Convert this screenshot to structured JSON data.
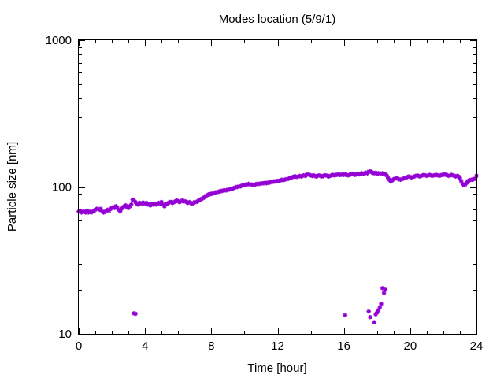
{
  "chart_data": {
    "type": "scatter",
    "title": "Modes location (5/9/1)",
    "xlabel": "Time [hour]",
    "ylabel": "Particle size [nm]",
    "xlim": [
      0,
      24
    ],
    "ylim": [
      10,
      1000
    ],
    "yscale": "log",
    "x_ticks": [
      0,
      4,
      8,
      12,
      16,
      20,
      24
    ],
    "x_tick_labels": [
      "0",
      "4",
      "8",
      "12",
      "16",
      "20",
      "24"
    ],
    "y_ticks": [
      10,
      100,
      1000
    ],
    "y_tick_labels": [
      "10",
      "100",
      "1000"
    ],
    "grid": false,
    "legend": "none",
    "marker_color": "#9400d3",
    "series": [
      {
        "points": [
          [
            0.0,
            68
          ],
          [
            0.08,
            69
          ],
          [
            0.17,
            67
          ],
          [
            0.25,
            68
          ],
          [
            0.33,
            68
          ],
          [
            0.42,
            67
          ],
          [
            0.5,
            69
          ],
          [
            0.58,
            67
          ],
          [
            0.67,
            68
          ],
          [
            0.75,
            67
          ],
          [
            0.83,
            68
          ],
          [
            0.92,
            69
          ],
          [
            1.0,
            70
          ],
          [
            1.08,
            71
          ],
          [
            1.17,
            71
          ],
          [
            1.25,
            70
          ],
          [
            1.33,
            71
          ],
          [
            1.42,
            68
          ],
          [
            1.5,
            67
          ],
          [
            1.58,
            68
          ],
          [
            1.67,
            69
          ],
          [
            1.75,
            70
          ],
          [
            1.83,
            69
          ],
          [
            1.92,
            71
          ],
          [
            2.0,
            72
          ],
          [
            2.08,
            73
          ],
          [
            2.17,
            72
          ],
          [
            2.25,
            74
          ],
          [
            2.33,
            72
          ],
          [
            2.42,
            70
          ],
          [
            2.5,
            68
          ],
          [
            2.58,
            71
          ],
          [
            2.67,
            73
          ],
          [
            2.75,
            74
          ],
          [
            2.83,
            75
          ],
          [
            2.92,
            73
          ],
          [
            3.0,
            72
          ],
          [
            3.08,
            74
          ],
          [
            3.17,
            76
          ],
          [
            3.25,
            82
          ],
          [
            3.33,
            81
          ],
          [
            3.42,
            79
          ],
          [
            3.5,
            77
          ],
          [
            3.58,
            76
          ],
          [
            3.67,
            78
          ],
          [
            3.75,
            77
          ],
          [
            3.83,
            78
          ],
          [
            3.92,
            78
          ],
          [
            4.0,
            77
          ],
          [
            4.08,
            78
          ],
          [
            4.17,
            76
          ],
          [
            4.25,
            76
          ],
          [
            4.33,
            75
          ],
          [
            4.42,
            77
          ],
          [
            4.5,
            76
          ],
          [
            4.58,
            77
          ],
          [
            4.67,
            76
          ],
          [
            4.75,
            77
          ],
          [
            4.83,
            78
          ],
          [
            4.92,
            77
          ],
          [
            5.0,
            79
          ],
          [
            5.08,
            76
          ],
          [
            5.17,
            74
          ],
          [
            5.25,
            76
          ],
          [
            5.33,
            77
          ],
          [
            5.42,
            78
          ],
          [
            5.5,
            79
          ],
          [
            5.58,
            79
          ],
          [
            5.67,
            78
          ],
          [
            5.75,
            79
          ],
          [
            5.83,
            80
          ],
          [
            5.92,
            81
          ],
          [
            6.0,
            80
          ],
          [
            6.08,
            79
          ],
          [
            6.17,
            80
          ],
          [
            6.25,
            81
          ],
          [
            6.33,
            80
          ],
          [
            6.42,
            80
          ],
          [
            6.5,
            79
          ],
          [
            6.58,
            78
          ],
          [
            6.67,
            79
          ],
          [
            6.75,
            78
          ],
          [
            6.83,
            77
          ],
          [
            6.92,
            78
          ],
          [
            7.0,
            79
          ],
          [
            7.08,
            79
          ],
          [
            7.17,
            80
          ],
          [
            7.25,
            81
          ],
          [
            7.33,
            82
          ],
          [
            7.42,
            83
          ],
          [
            7.5,
            84
          ],
          [
            7.58,
            85
          ],
          [
            7.67,
            87
          ],
          [
            7.75,
            88
          ],
          [
            7.83,
            89
          ],
          [
            7.92,
            89
          ],
          [
            8.0,
            90
          ],
          [
            8.08,
            90
          ],
          [
            8.17,
            91
          ],
          [
            8.25,
            92
          ],
          [
            8.33,
            92
          ],
          [
            8.42,
            93
          ],
          [
            8.5,
            93
          ],
          [
            8.58,
            94
          ],
          [
            8.67,
            94
          ],
          [
            8.75,
            95
          ],
          [
            8.83,
            95
          ],
          [
            8.92,
            95
          ],
          [
            9.0,
            96
          ],
          [
            9.08,
            96
          ],
          [
            9.17,
            97
          ],
          [
            9.25,
            97
          ],
          [
            9.33,
            98
          ],
          [
            9.42,
            99
          ],
          [
            9.5,
            100
          ],
          [
            9.58,
            100
          ],
          [
            9.67,
            101
          ],
          [
            9.75,
            101
          ],
          [
            9.83,
            102
          ],
          [
            9.92,
            103
          ],
          [
            10.0,
            103
          ],
          [
            10.08,
            104
          ],
          [
            10.17,
            104
          ],
          [
            10.25,
            105
          ],
          [
            10.33,
            104
          ],
          [
            10.42,
            104
          ],
          [
            10.5,
            103
          ],
          [
            10.58,
            104
          ],
          [
            10.67,
            104
          ],
          [
            10.75,
            105
          ],
          [
            10.83,
            105
          ],
          [
            10.92,
            105
          ],
          [
            11.0,
            106
          ],
          [
            11.08,
            106
          ],
          [
            11.17,
            106
          ],
          [
            11.25,
            107
          ],
          [
            11.33,
            106
          ],
          [
            11.42,
            107
          ],
          [
            11.5,
            107
          ],
          [
            11.58,
            108
          ],
          [
            11.67,
            108
          ],
          [
            11.75,
            109
          ],
          [
            11.83,
            109
          ],
          [
            11.92,
            110
          ],
          [
            12.0,
            110
          ],
          [
            12.08,
            110
          ],
          [
            12.17,
            111
          ],
          [
            12.25,
            112
          ],
          [
            12.33,
            111
          ],
          [
            12.42,
            112
          ],
          [
            12.5,
            113
          ],
          [
            12.58,
            113
          ],
          [
            12.67,
            114
          ],
          [
            12.75,
            115
          ],
          [
            12.83,
            116
          ],
          [
            12.92,
            117
          ],
          [
            13.0,
            118
          ],
          [
            13.08,
            118
          ],
          [
            13.17,
            117
          ],
          [
            13.25,
            118
          ],
          [
            13.33,
            119
          ],
          [
            13.42,
            118
          ],
          [
            13.5,
            119
          ],
          [
            13.58,
            120
          ],
          [
            13.67,
            119
          ],
          [
            13.75,
            121
          ],
          [
            13.83,
            122
          ],
          [
            13.92,
            121
          ],
          [
            14.0,
            120
          ],
          [
            14.08,
            119
          ],
          [
            14.17,
            120
          ],
          [
            14.25,
            119
          ],
          [
            14.33,
            118
          ],
          [
            14.42,
            119
          ],
          [
            14.5,
            120
          ],
          [
            14.58,
            119
          ],
          [
            14.67,
            118
          ],
          [
            14.75,
            119
          ],
          [
            14.83,
            120
          ],
          [
            14.92,
            120
          ],
          [
            15.0,
            119
          ],
          [
            15.08,
            118
          ],
          [
            15.17,
            119
          ],
          [
            15.25,
            120
          ],
          [
            15.33,
            121
          ],
          [
            15.42,
            120
          ],
          [
            15.5,
            121
          ],
          [
            15.58,
            121
          ],
          [
            15.67,
            122
          ],
          [
            15.75,
            121
          ],
          [
            15.83,
            121
          ],
          [
            15.92,
            122
          ],
          [
            16.0,
            121
          ],
          [
            16.08,
            122
          ],
          [
            16.17,
            121
          ],
          [
            16.25,
            120
          ],
          [
            16.33,
            121
          ],
          [
            16.42,
            122
          ],
          [
            16.5,
            123
          ],
          [
            16.58,
            122
          ],
          [
            16.67,
            121
          ],
          [
            16.75,
            122
          ],
          [
            16.83,
            123
          ],
          [
            16.92,
            122
          ],
          [
            17.0,
            123
          ],
          [
            17.08,
            124
          ],
          [
            17.17,
            123
          ],
          [
            17.25,
            124
          ],
          [
            17.33,
            125
          ],
          [
            17.42,
            124
          ],
          [
            17.5,
            127
          ],
          [
            17.58,
            128
          ],
          [
            17.67,
            126
          ],
          [
            17.75,
            125
          ],
          [
            17.83,
            124
          ],
          [
            17.92,
            125
          ],
          [
            18.0,
            123
          ],
          [
            18.08,
            124
          ],
          [
            18.17,
            124
          ],
          [
            18.25,
            123
          ],
          [
            18.33,
            124
          ],
          [
            18.42,
            123
          ],
          [
            18.5,
            122
          ],
          [
            18.58,
            120
          ],
          [
            18.67,
            115
          ],
          [
            18.75,
            112
          ],
          [
            18.83,
            109
          ],
          [
            18.92,
            111
          ],
          [
            19.0,
            113
          ],
          [
            19.08,
            114
          ],
          [
            19.17,
            115
          ],
          [
            19.25,
            114
          ],
          [
            19.33,
            113
          ],
          [
            19.42,
            112
          ],
          [
            19.5,
            113
          ],
          [
            19.58,
            114
          ],
          [
            19.67,
            115
          ],
          [
            19.75,
            116
          ],
          [
            19.83,
            117
          ],
          [
            19.92,
            118
          ],
          [
            20.0,
            117
          ],
          [
            20.08,
            116
          ],
          [
            20.17,
            117
          ],
          [
            20.25,
            118
          ],
          [
            20.33,
            119
          ],
          [
            20.42,
            120
          ],
          [
            20.5,
            119
          ],
          [
            20.58,
            118
          ],
          [
            20.67,
            119
          ],
          [
            20.75,
            120
          ],
          [
            20.83,
            121
          ],
          [
            20.92,
            120
          ],
          [
            21.0,
            119
          ],
          [
            21.08,
            120
          ],
          [
            21.17,
            121
          ],
          [
            21.25,
            120
          ],
          [
            21.33,
            119
          ],
          [
            21.42,
            120
          ],
          [
            21.5,
            120
          ],
          [
            21.58,
            121
          ],
          [
            21.67,
            120
          ],
          [
            21.75,
            119
          ],
          [
            21.83,
            120
          ],
          [
            21.92,
            121
          ],
          [
            22.0,
            121
          ],
          [
            22.08,
            122
          ],
          [
            22.17,
            121
          ],
          [
            22.25,
            120
          ],
          [
            22.33,
            119
          ],
          [
            22.42,
            120
          ],
          [
            22.5,
            121
          ],
          [
            22.58,
            120
          ],
          [
            22.67,
            119
          ],
          [
            22.75,
            118
          ],
          [
            22.83,
            119
          ],
          [
            22.92,
            118
          ],
          [
            23.0,
            115
          ],
          [
            23.08,
            110
          ],
          [
            23.17,
            105
          ],
          [
            23.25,
            103
          ],
          [
            23.33,
            104
          ],
          [
            23.42,
            107
          ],
          [
            23.5,
            110
          ],
          [
            23.58,
            111
          ],
          [
            23.67,
            112
          ],
          [
            23.75,
            112
          ],
          [
            23.83,
            113
          ],
          [
            23.92,
            114
          ],
          [
            24.0,
            119
          ],
          [
            3.33,
            13.8
          ],
          [
            3.42,
            13.7
          ],
          [
            16.08,
            13.4
          ],
          [
            17.5,
            14.2
          ],
          [
            17.58,
            13.0
          ],
          [
            17.83,
            12.0
          ],
          [
            17.92,
            13.6
          ],
          [
            18.0,
            14.0
          ],
          [
            18.08,
            14.5
          ],
          [
            18.17,
            15.2
          ],
          [
            18.25,
            16.0
          ],
          [
            18.33,
            20.5
          ],
          [
            18.42,
            19.0
          ],
          [
            18.5,
            20.0
          ]
        ]
      }
    ]
  }
}
